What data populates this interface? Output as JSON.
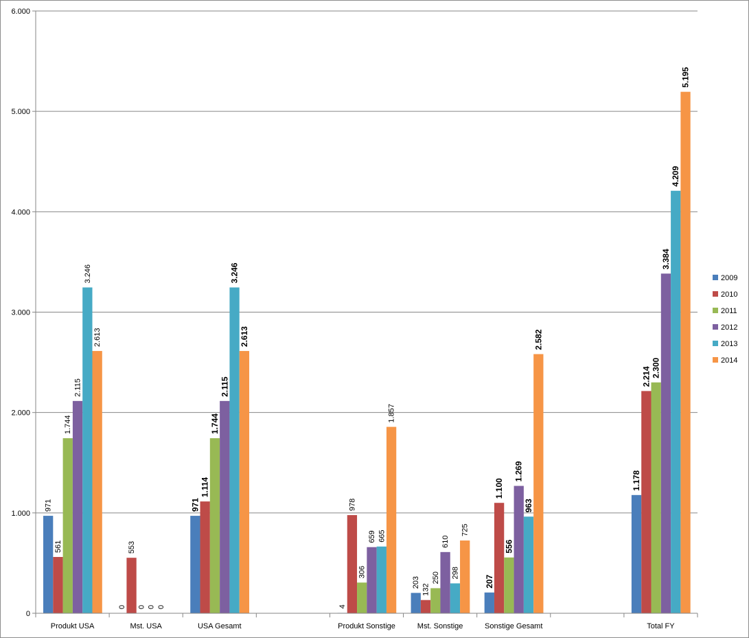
{
  "chart_data": {
    "type": "bar",
    "title": "",
    "xlabel": "",
    "ylabel": "",
    "ylim": [
      0,
      6000
    ],
    "y_ticks": [
      "0",
      "1.000",
      "2.000",
      "3.000",
      "4.000",
      "5.000",
      "6.000"
    ],
    "grid": true,
    "legend_position": "right",
    "categories": [
      "Produkt USA",
      "Mst. USA",
      "USA Gesamt",
      "",
      "Produkt Sonstige",
      "Mst. Sonstige",
      "Sonstige Gesamt",
      "",
      "Total FY"
    ],
    "bold_label_categories": [
      2,
      6,
      8
    ],
    "series": [
      {
        "name": "2009",
        "color": "#4a7ebb",
        "values": [
          971,
          0,
          971,
          null,
          4,
          203,
          207,
          null,
          1178
        ],
        "labels": [
          "971",
          "0",
          "971",
          null,
          "4",
          "203",
          "207",
          null,
          "1.178"
        ]
      },
      {
        "name": "2010",
        "color": "#be4b48",
        "values": [
          561,
          553,
          1114,
          null,
          978,
          132,
          1100,
          null,
          2214
        ],
        "labels": [
          "561",
          "553",
          "1.114",
          null,
          "978",
          "132",
          "1.100",
          null,
          "2.214"
        ]
      },
      {
        "name": "2011",
        "color": "#98b954",
        "values": [
          1744,
          0,
          1744,
          null,
          306,
          250,
          556,
          null,
          2300
        ],
        "labels": [
          "1.744",
          "0",
          "1.744",
          null,
          "306",
          "250",
          "556",
          null,
          "2.300"
        ]
      },
      {
        "name": "2012",
        "color": "#7d60a0",
        "values": [
          2115,
          0,
          2115,
          null,
          659,
          610,
          1269,
          null,
          3384
        ],
        "labels": [
          "2.115",
          "0",
          "2.115",
          null,
          "659",
          "610",
          "1.269",
          null,
          "3.384"
        ]
      },
      {
        "name": "2013",
        "color": "#46aac5",
        "values": [
          3246,
          0,
          3246,
          null,
          665,
          298,
          963,
          null,
          4209
        ],
        "labels": [
          "3.246",
          "0",
          "3.246",
          null,
          "665",
          "298",
          "963",
          null,
          "4.209"
        ]
      },
      {
        "name": "2014",
        "color": "#f69546",
        "values": [
          2613,
          null,
          2613,
          null,
          1857,
          725,
          2582,
          null,
          5195
        ],
        "labels": [
          "2.613",
          null,
          "2.613",
          null,
          "1.857",
          "725",
          "2.582",
          null,
          "5.195"
        ]
      }
    ]
  }
}
